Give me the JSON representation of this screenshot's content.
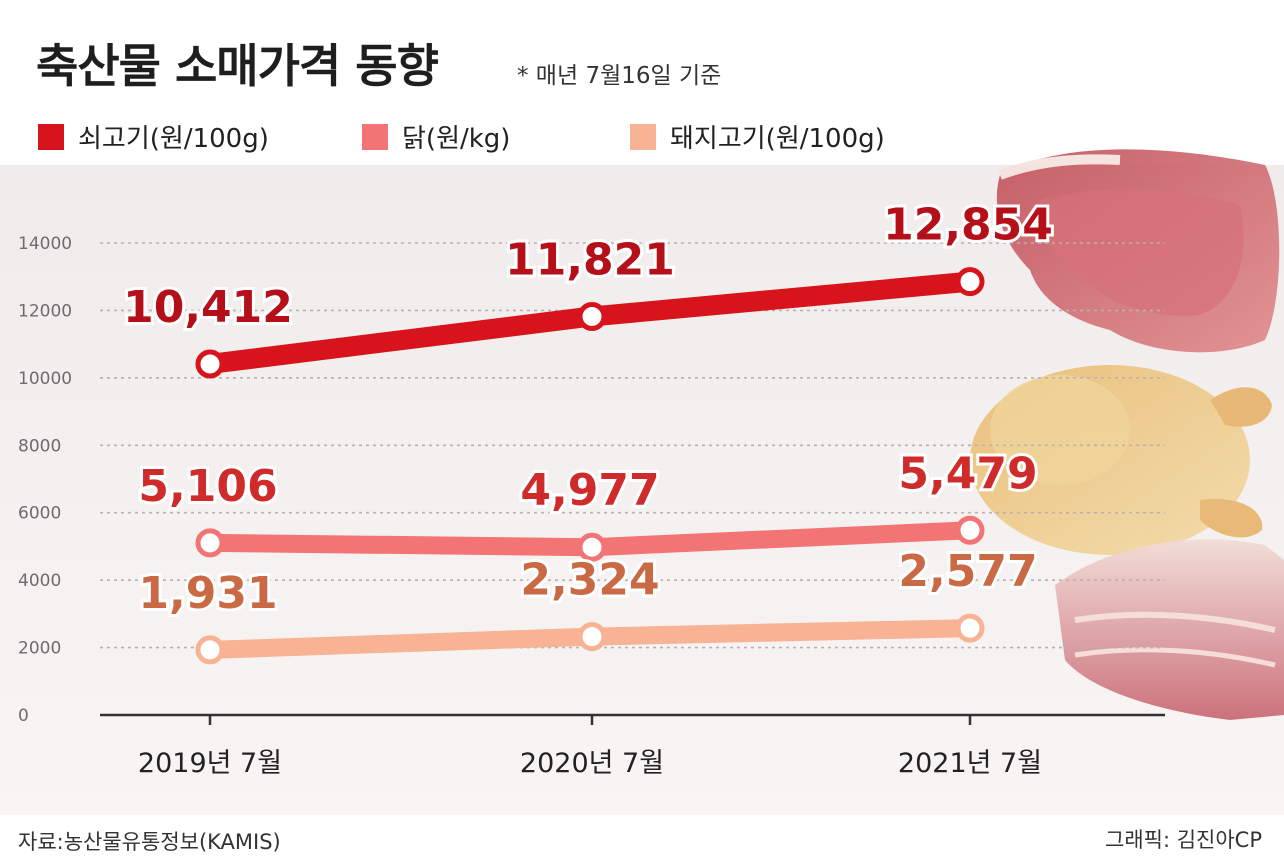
{
  "header": {
    "title": "축산물 소매가격 동향",
    "subtitle": "* 매년 7월16일 기준"
  },
  "legend": [
    {
      "label": "쇠고기(원/100g)",
      "color": "#d7141b"
    },
    {
      "label": "닭(원/kg)",
      "color": "#f27474"
    },
    {
      "label": "돼지고기(원/100g)",
      "color": "#f7b394"
    }
  ],
  "footer": {
    "source": "자료:농산물유통정보(KAMIS)",
    "credit": "그래픽: 김진아CP"
  },
  "chart_data": {
    "type": "line",
    "categories": [
      "2019년 7월",
      "2020년 7월",
      "2021년 7월"
    ],
    "series": [
      {
        "name": "쇠고기(원/100g)",
        "values": [
          10412,
          11821,
          12854
        ],
        "labels": [
          "10,412",
          "11,821",
          "12,854"
        ],
        "color": "#d7141b",
        "label_color": "#b5101a"
      },
      {
        "name": "닭(원/kg)",
        "values": [
          5106,
          4977,
          5479
        ],
        "labels": [
          "5,106",
          "4,977",
          "5,479"
        ],
        "color": "#f27474",
        "label_color": "#cf2b2b"
      },
      {
        "name": "돼지고기(원/100g)",
        "values": [
          1931,
          2324,
          2577
        ],
        "labels": [
          "1,931",
          "2,324",
          "2,577"
        ],
        "color": "#f7b394",
        "label_color": "#c96a45"
      }
    ],
    "yticks": [
      "0",
      "2000",
      "4000",
      "6000",
      "8000",
      "10000",
      "12000",
      "14000"
    ],
    "ylim": [
      0,
      14000
    ],
    "grid": true
  }
}
